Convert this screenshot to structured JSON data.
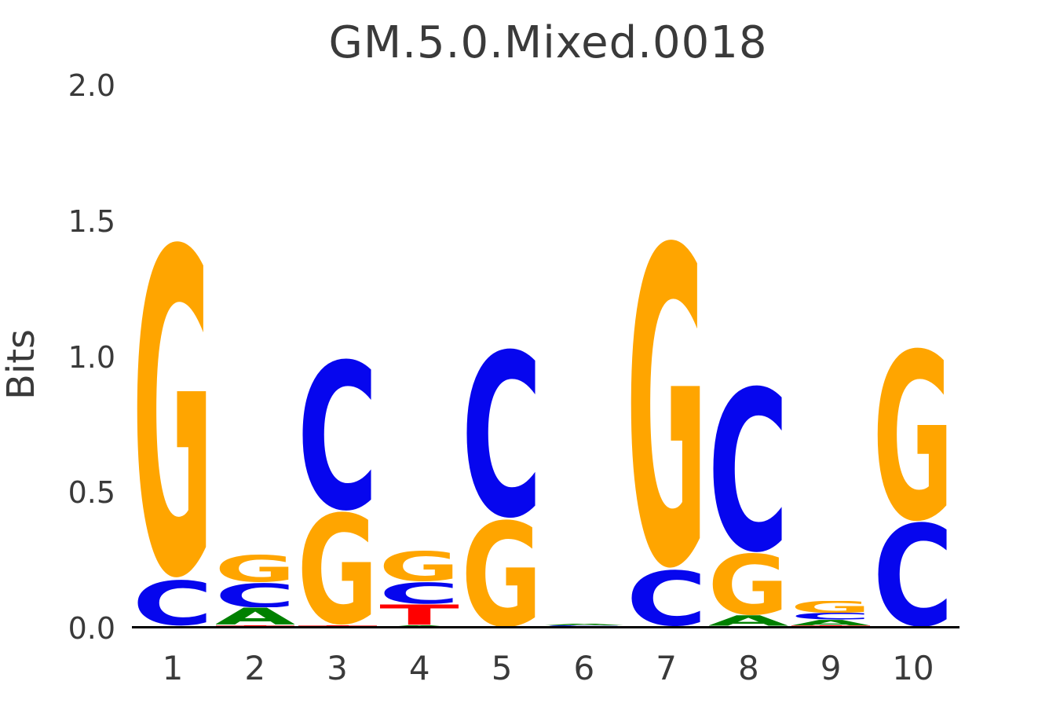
{
  "title": "GM.5.0.Mixed.0018",
  "axes": {
    "ylabel": "Bits",
    "yticks": [
      "0.0",
      "0.5",
      "1.0",
      "1.5",
      "2.0"
    ],
    "xticks": [
      "1",
      "2",
      "3",
      "4",
      "5",
      "6",
      "7",
      "8",
      "9",
      "10"
    ]
  },
  "colors": {
    "A": "#008000",
    "C": "#0606ee",
    "G": "#ffa500",
    "T": "#ff0000",
    "text": "#3a3a3a",
    "axis_line": "#000000",
    "background": "#ffffff"
  },
  "chart_data": {
    "type": "sequence_logo",
    "title": "GM.5.0.Mixed.0018",
    "xlabel": "",
    "ylabel": "Bits",
    "ylim": [
      0.0,
      2.0
    ],
    "grid": false,
    "x": [
      1,
      2,
      3,
      4,
      5,
      6,
      7,
      8,
      9,
      10
    ],
    "note": "stacks listed top-to-bottom, heights in bits",
    "positions": [
      {
        "pos": 1,
        "stack": [
          [
            "G",
            1.25
          ],
          [
            "C",
            0.17
          ],
          [
            "T",
            0.007
          ]
        ]
      },
      {
        "pos": 2,
        "stack": [
          [
            "G",
            0.102
          ],
          [
            "C",
            0.092
          ],
          [
            "A",
            0.065
          ],
          [
            "T",
            0.009
          ]
        ]
      },
      {
        "pos": 3,
        "stack": [
          [
            "C",
            0.565
          ],
          [
            "G",
            0.42
          ],
          [
            "T",
            0.008
          ]
        ]
      },
      {
        "pos": 4,
        "stack": [
          [
            "G",
            0.115
          ],
          [
            "C",
            0.081
          ],
          [
            "T",
            0.078
          ],
          [
            "A",
            0.009
          ]
        ]
      },
      {
        "pos": 5,
        "stack": [
          [
            "C",
            0.63
          ],
          [
            "G",
            0.4
          ]
        ]
      },
      {
        "pos": 6,
        "stack": [
          [
            "A",
            0.006
          ],
          [
            "C",
            0.004
          ],
          [
            "T",
            0.003
          ],
          [
            "G",
            0.003
          ]
        ]
      },
      {
        "pos": 7,
        "stack": [
          [
            "G",
            1.22
          ],
          [
            "C",
            0.21
          ],
          [
            "T",
            0.005
          ]
        ]
      },
      {
        "pos": 8,
        "stack": [
          [
            "C",
            0.62
          ],
          [
            "G",
            0.23
          ],
          [
            "A",
            0.04
          ],
          [
            "T",
            0.006
          ]
        ]
      },
      {
        "pos": 9,
        "stack": [
          [
            "G",
            0.045
          ],
          [
            "C",
            0.025
          ],
          [
            "A",
            0.022
          ],
          [
            "T",
            0.008
          ]
        ]
      },
      {
        "pos": 10,
        "stack": [
          [
            "G",
            0.645
          ],
          [
            "C",
            0.39
          ]
        ]
      }
    ]
  }
}
